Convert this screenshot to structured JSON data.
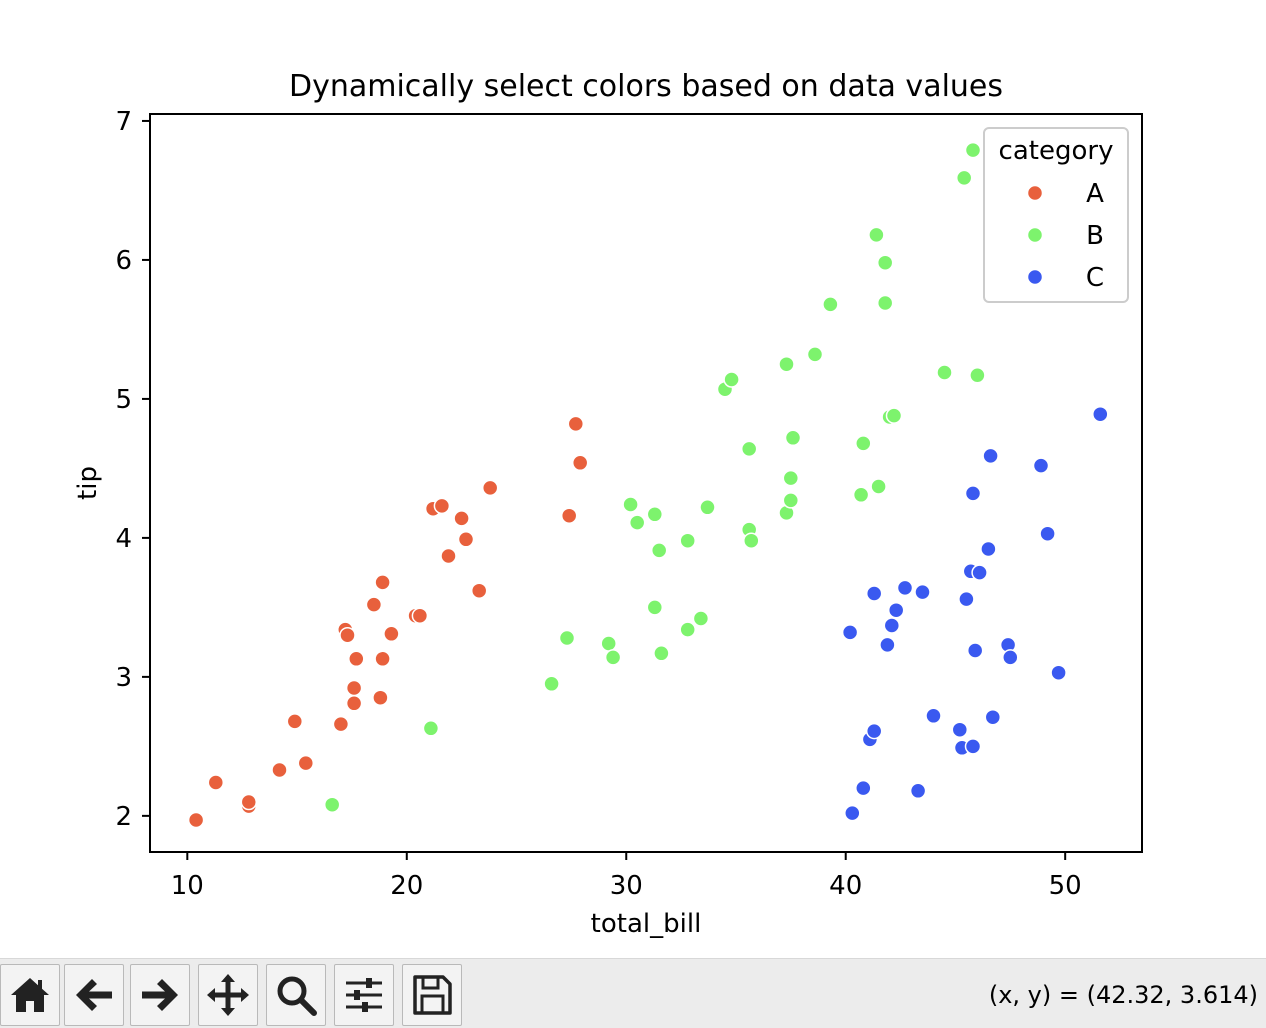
{
  "chart_data": {
    "type": "scatter",
    "title": "Dynamically select colors based on data values",
    "xlabel": "total_bill",
    "ylabel": "tip",
    "xlim": [
      8.3,
      53.5
    ],
    "ylim": [
      1.74,
      7.05
    ],
    "xticks": [
      10,
      20,
      30,
      40,
      50
    ],
    "yticks": [
      2,
      3,
      4,
      5,
      6,
      7
    ],
    "grid": false,
    "legend": {
      "title": "category",
      "placement": "upper right"
    },
    "series": [
      {
        "name": "A",
        "color": "#e8603c",
        "points": [
          [
            10.4,
            1.97
          ],
          [
            11.3,
            2.24
          ],
          [
            12.8,
            2.07
          ],
          [
            12.8,
            2.1
          ],
          [
            14.2,
            2.33
          ],
          [
            15.4,
            2.38
          ],
          [
            14.9,
            2.68
          ],
          [
            17.0,
            2.66
          ],
          [
            17.6,
            2.81
          ],
          [
            17.6,
            2.92
          ],
          [
            17.7,
            3.13
          ],
          [
            18.8,
            2.85
          ],
          [
            18.9,
            3.13
          ],
          [
            17.2,
            3.34
          ],
          [
            17.3,
            3.3
          ],
          [
            19.3,
            3.31
          ],
          [
            18.5,
            3.52
          ],
          [
            18.9,
            3.68
          ],
          [
            20.4,
            3.44
          ],
          [
            20.6,
            3.44
          ],
          [
            21.9,
            3.87
          ],
          [
            21.2,
            4.21
          ],
          [
            21.6,
            4.23
          ],
          [
            22.5,
            4.14
          ],
          [
            22.7,
            3.99
          ],
          [
            23.3,
            3.62
          ],
          [
            23.8,
            4.36
          ],
          [
            27.4,
            4.16
          ],
          [
            27.7,
            4.82
          ],
          [
            27.9,
            4.54
          ]
        ]
      },
      {
        "name": "B",
        "color": "#7df36d",
        "points": [
          [
            16.6,
            2.08
          ],
          [
            21.1,
            2.63
          ],
          [
            26.6,
            2.95
          ],
          [
            27.3,
            3.28
          ],
          [
            29.2,
            3.24
          ],
          [
            29.4,
            3.14
          ],
          [
            31.3,
            3.5
          ],
          [
            31.6,
            3.17
          ],
          [
            32.8,
            3.34
          ],
          [
            33.4,
            3.42
          ],
          [
            30.2,
            4.24
          ],
          [
            30.5,
            4.11
          ],
          [
            31.3,
            4.17
          ],
          [
            31.5,
            3.91
          ],
          [
            32.8,
            3.98
          ],
          [
            33.7,
            4.22
          ],
          [
            35.6,
            4.06
          ],
          [
            35.7,
            3.98
          ],
          [
            35.6,
            4.64
          ],
          [
            34.5,
            5.07
          ],
          [
            34.8,
            5.14
          ],
          [
            37.3,
            5.25
          ],
          [
            38.6,
            5.32
          ],
          [
            37.3,
            4.18
          ],
          [
            37.5,
            4.27
          ],
          [
            37.5,
            4.43
          ],
          [
            37.6,
            4.72
          ],
          [
            39.3,
            5.68
          ],
          [
            40.7,
            4.31
          ],
          [
            40.8,
            4.68
          ],
          [
            41.5,
            4.37
          ],
          [
            42.0,
            4.87
          ],
          [
            42.2,
            4.88
          ],
          [
            41.4,
            6.18
          ],
          [
            41.8,
            5.98
          ],
          [
            41.8,
            5.69
          ],
          [
            44.5,
            5.19
          ],
          [
            46.0,
            5.17
          ],
          [
            45.4,
            6.59
          ],
          [
            45.8,
            6.79
          ]
        ]
      },
      {
        "name": "C",
        "color": "#3a59f0",
        "points": [
          [
            40.3,
            2.02
          ],
          [
            40.8,
            2.2
          ],
          [
            41.1,
            2.55
          ],
          [
            41.3,
            2.61
          ],
          [
            43.3,
            2.18
          ],
          [
            44.0,
            2.72
          ],
          [
            45.2,
            2.62
          ],
          [
            45.3,
            2.49
          ],
          [
            45.8,
            2.5
          ],
          [
            46.7,
            2.71
          ],
          [
            40.2,
            3.32
          ],
          [
            41.3,
            3.6
          ],
          [
            41.9,
            3.23
          ],
          [
            42.1,
            3.37
          ],
          [
            42.3,
            3.48
          ],
          [
            42.7,
            3.64
          ],
          [
            43.5,
            3.61
          ],
          [
            45.5,
            3.56
          ],
          [
            45.7,
            3.76
          ],
          [
            46.1,
            3.75
          ],
          [
            45.9,
            3.19
          ],
          [
            46.5,
            3.92
          ],
          [
            45.8,
            4.32
          ],
          [
            46.6,
            4.59
          ],
          [
            47.4,
            3.23
          ],
          [
            47.5,
            3.14
          ],
          [
            48.9,
            4.52
          ],
          [
            49.2,
            4.03
          ],
          [
            49.7,
            3.03
          ],
          [
            51.6,
            4.89
          ]
        ]
      }
    ]
  },
  "toolbar": {
    "buttons": [
      {
        "name": "home-button",
        "icon": "home-icon"
      },
      {
        "name": "back-button",
        "icon": "arrow-left-icon"
      },
      {
        "name": "forward-button",
        "icon": "arrow-right-icon"
      },
      {
        "name": "pan-button",
        "icon": "move-icon"
      },
      {
        "name": "zoom-button",
        "icon": "magnifier-icon"
      },
      {
        "name": "configure-subplots-button",
        "icon": "sliders-icon"
      },
      {
        "name": "save-button",
        "icon": "floppy-disk-icon"
      }
    ],
    "coordinates": "(x, y) = (42.32, 3.614)"
  }
}
